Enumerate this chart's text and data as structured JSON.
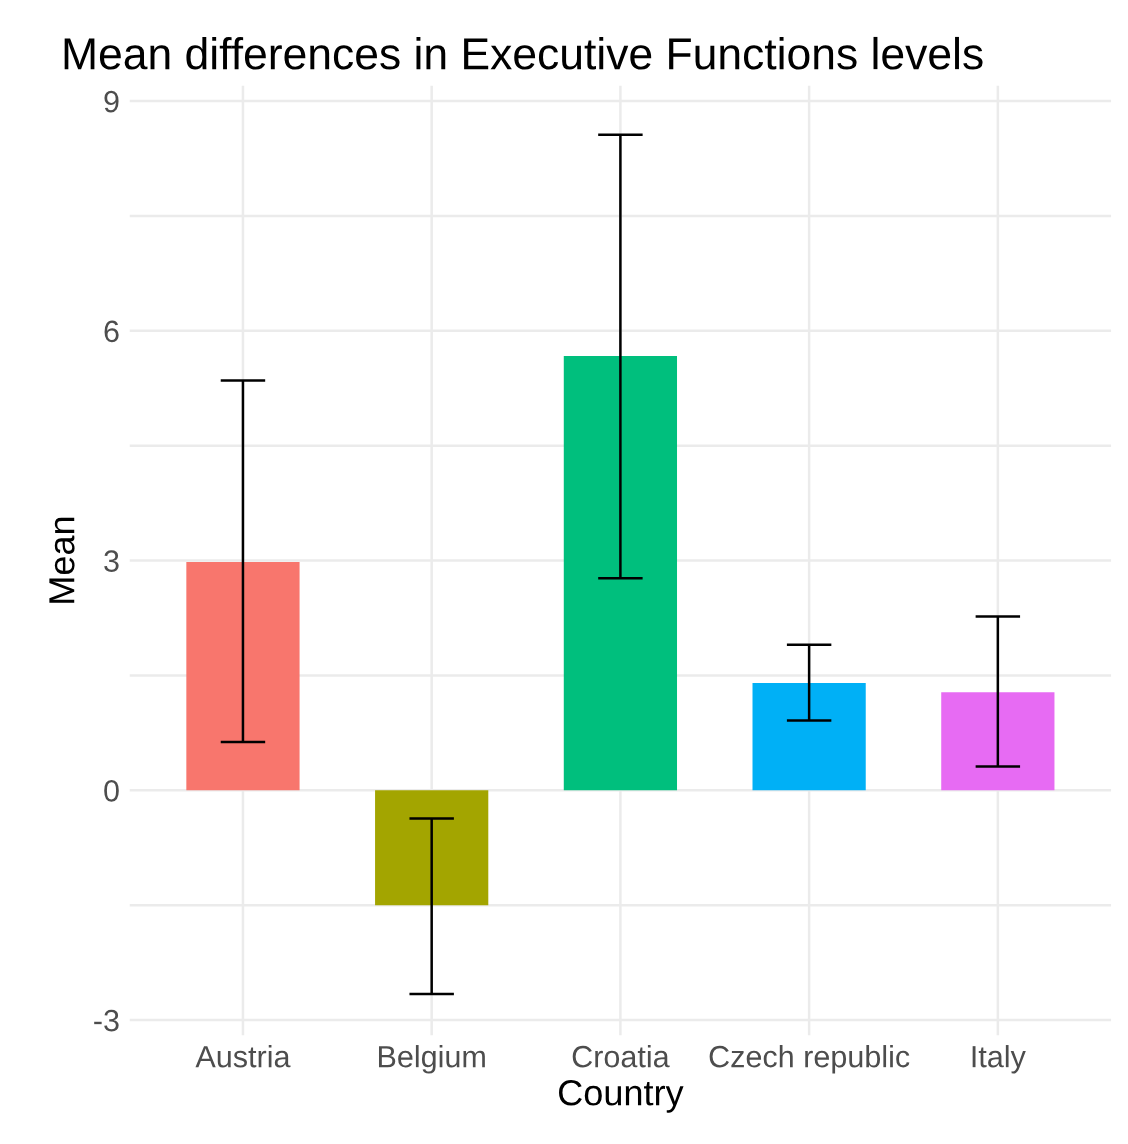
{
  "chart_data": {
    "type": "bar",
    "title": "Mean differences in Executive Functions levels",
    "xlabel": "Country",
    "ylabel": "Mean",
    "categories": [
      "Austria",
      "Belgium",
      "Croatia",
      "Czech republic",
      "Italy"
    ],
    "values": [
      2.98,
      -1.5,
      5.67,
      1.4,
      1.28
    ],
    "errors": [
      [
        0.63,
        5.35
      ],
      [
        -2.66,
        -0.37
      ],
      [
        2.77,
        8.56
      ],
      [
        0.91,
        1.9
      ],
      [
        0.31,
        2.27
      ]
    ],
    "colors": [
      "#f8766d",
      "#a3a500",
      "#00bf7d",
      "#00b0f6",
      "#e76bf3"
    ],
    "ylim": [
      -3.2,
      9.2
    ],
    "yticks": [
      -3,
      {
        "value": -1.5,
        "label": null
      },
      0,
      {
        "value": 1.5,
        "label": null
      },
      3,
      {
        "value": 4.5,
        "label": null
      },
      6,
      {
        "value": 7.5,
        "label": null
      },
      9
    ],
    "grid": true,
    "legend": false
  }
}
